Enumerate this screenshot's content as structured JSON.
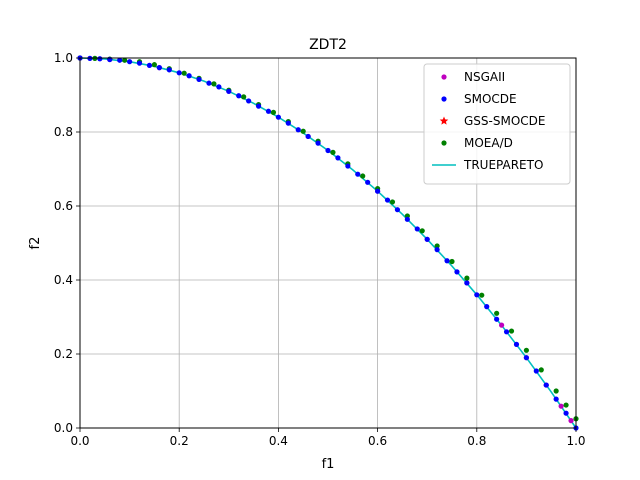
{
  "chart_data": {
    "type": "scatter",
    "title": "ZDT2",
    "xlabel": "f1",
    "ylabel": "f2",
    "xlim": [
      0.0,
      1.0
    ],
    "ylim": [
      0.0,
      1.0
    ],
    "xticks": [
      "0.0",
      "0.2",
      "0.4",
      "0.6",
      "0.8",
      "1.0"
    ],
    "yticks": [
      "0.0",
      "0.2",
      "0.4",
      "0.6",
      "0.8",
      "1.0"
    ],
    "grid": true,
    "legend_position": "top-right",
    "series": [
      {
        "name": "NSGAII",
        "marker": "circle",
        "color": "#bf00bf",
        "x": [
          0.0,
          0.06,
          0.16,
          0.3,
          0.46,
          0.6,
          0.7,
          0.78,
          0.85,
          0.9,
          0.94,
          0.97,
          0.99
        ],
        "y": [
          1.0,
          0.996,
          0.974,
          0.91,
          0.788,
          0.64,
          0.51,
          0.392,
          0.278,
          0.19,
          0.116,
          0.059,
          0.02
        ]
      },
      {
        "name": "SMOCDE",
        "marker": "circle",
        "color": "#0000ff",
        "x": [
          0.0,
          0.02,
          0.04,
          0.06,
          0.08,
          0.1,
          0.12,
          0.14,
          0.16,
          0.18,
          0.2,
          0.22,
          0.24,
          0.26,
          0.28,
          0.3,
          0.32,
          0.34,
          0.36,
          0.38,
          0.4,
          0.42,
          0.44,
          0.46,
          0.48,
          0.5,
          0.52,
          0.54,
          0.56,
          0.58,
          0.6,
          0.62,
          0.64,
          0.66,
          0.68,
          0.7,
          0.72,
          0.74,
          0.76,
          0.78,
          0.8,
          0.82,
          0.84,
          0.86,
          0.88,
          0.9,
          0.92,
          0.94,
          0.96,
          0.98,
          1.0
        ],
        "y": [
          1.0,
          0.999,
          0.998,
          0.996,
          0.994,
          0.99,
          0.986,
          0.98,
          0.974,
          0.968,
          0.96,
          0.952,
          0.942,
          0.932,
          0.922,
          0.91,
          0.898,
          0.884,
          0.87,
          0.856,
          0.84,
          0.824,
          0.806,
          0.788,
          0.77,
          0.75,
          0.73,
          0.708,
          0.686,
          0.664,
          0.64,
          0.616,
          0.59,
          0.564,
          0.538,
          0.51,
          0.482,
          0.452,
          0.422,
          0.392,
          0.36,
          0.328,
          0.294,
          0.26,
          0.226,
          0.19,
          0.154,
          0.116,
          0.078,
          0.04,
          0.0
        ]
      },
      {
        "name": "GSS-SMOCDE",
        "marker": "star",
        "color": "#ff0000",
        "x": [],
        "y": []
      },
      {
        "name": "MOEA/D",
        "marker": "circle",
        "color": "#008000",
        "x": [
          0.0,
          0.03,
          0.06,
          0.09,
          0.12,
          0.15,
          0.18,
          0.21,
          0.24,
          0.27,
          0.3,
          0.33,
          0.36,
          0.39,
          0.42,
          0.45,
          0.48,
          0.51,
          0.54,
          0.57,
          0.6,
          0.63,
          0.66,
          0.69,
          0.72,
          0.75,
          0.78,
          0.81,
          0.84,
          0.87,
          0.9,
          0.93,
          0.96,
          0.98,
          1.0
        ],
        "y": [
          1.0,
          0.999,
          0.997,
          0.994,
          0.99,
          0.982,
          0.971,
          0.959,
          0.945,
          0.93,
          0.913,
          0.895,
          0.874,
          0.853,
          0.828,
          0.802,
          0.775,
          0.745,
          0.714,
          0.681,
          0.647,
          0.611,
          0.573,
          0.533,
          0.492,
          0.45,
          0.405,
          0.359,
          0.31,
          0.262,
          0.21,
          0.157,
          0.1,
          0.062,
          0.025
        ]
      },
      {
        "name": "TRUEPARETO",
        "marker": "line",
        "color": "#00bfbf",
        "x": [
          0.0,
          0.05,
          0.1,
          0.15,
          0.2,
          0.25,
          0.3,
          0.35,
          0.4,
          0.45,
          0.5,
          0.55,
          0.6,
          0.65,
          0.7,
          0.75,
          0.8,
          0.85,
          0.9,
          0.95,
          1.0
        ],
        "y": [
          1.0,
          0.9975,
          0.99,
          0.9775,
          0.96,
          0.9375,
          0.91,
          0.8775,
          0.84,
          0.7975,
          0.75,
          0.6975,
          0.64,
          0.5775,
          0.51,
          0.4375,
          0.36,
          0.2775,
          0.19,
          0.0975,
          0.0
        ]
      }
    ]
  }
}
